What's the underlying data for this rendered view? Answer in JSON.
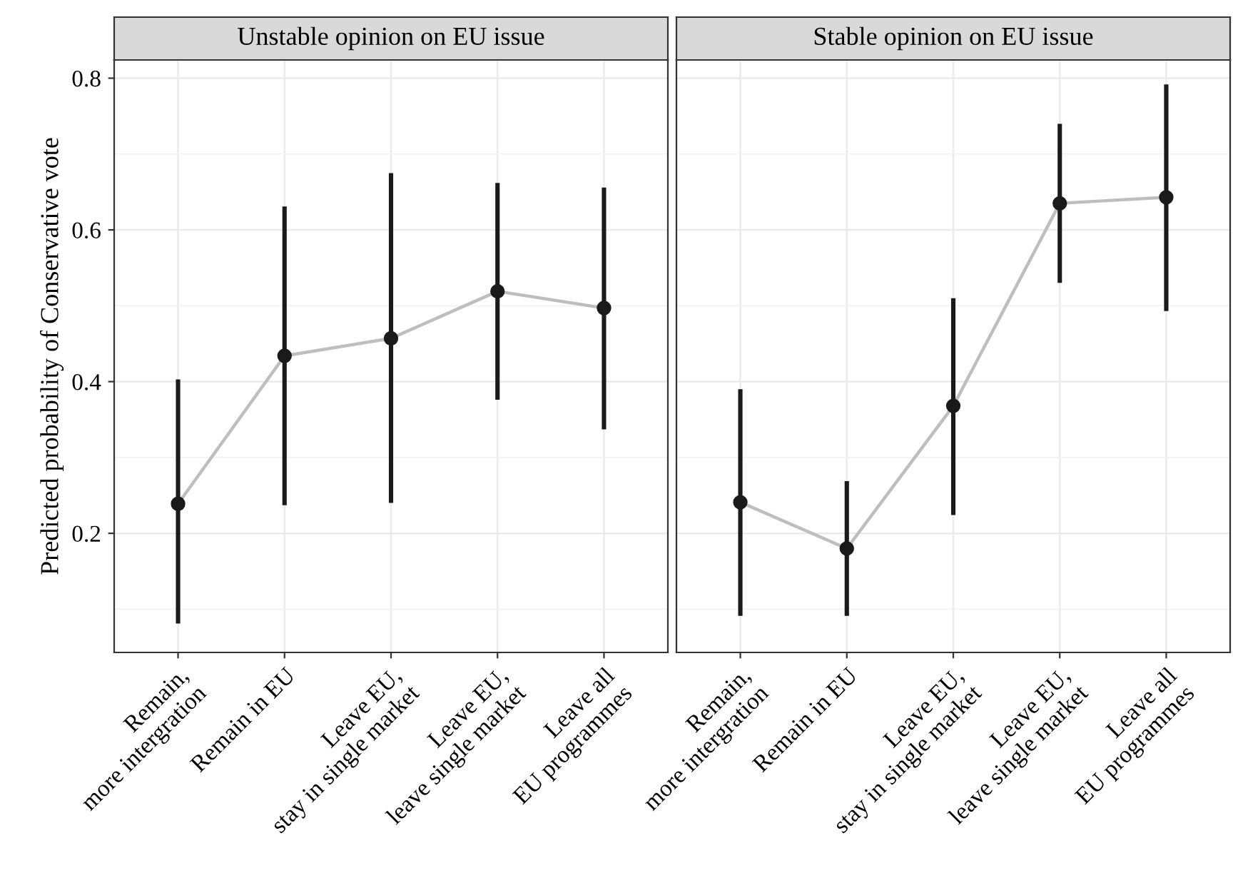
{
  "chart_data": [
    {
      "type": "line",
      "title": "Unstable opinion on EU issue",
      "ylabel": "Predicted probability of Conservative vote",
      "categories": [
        "Remain,\nmore intergration",
        "Remain in EU",
        "Leave EU,\nstay in single market",
        "Leave EU,\nleave single market",
        "Leave all\nEU programmes"
      ],
      "series": [
        {
          "color": "#bebebe",
          "values": [
            0.239,
            0.434,
            0.457,
            0.519,
            0.497
          ]
        },
        {
          "type": "scatter",
          "color": "#1a1a1a",
          "marker": "circle",
          "values": [
            0.239,
            0.434,
            0.457,
            0.519,
            0.497
          ],
          "errors": [
            [
              0.084,
              0.4
            ],
            [
              0.24,
              0.628
            ],
            [
              0.243,
              0.672
            ],
            [
              0.379,
              0.659
            ],
            [
              0.34,
              0.653
            ]
          ]
        }
      ],
      "ylim": [
        0.043,
        0.824
      ],
      "yticks": [
        0.2,
        0.4,
        0.6,
        0.8
      ],
      "grid": true
    },
    {
      "type": "line",
      "title": "Stable opinion on EU issue",
      "categories": [
        "Remain,\nmore intergration",
        "Remain in EU",
        "Leave EU,\nstay in single market",
        "Leave EU,\nleave single market",
        "Leave all\nEU programmes"
      ],
      "series": [
        {
          "color": "#bebebe",
          "values": [
            0.241,
            0.18,
            0.368,
            0.635,
            0.643
          ]
        },
        {
          "type": "scatter",
          "color": "#1a1a1a",
          "marker": "circle",
          "values": [
            0.241,
            0.18,
            0.368,
            0.635,
            0.643
          ],
          "errors": [
            [
              0.094,
              0.387
            ],
            [
              0.094,
              0.266
            ],
            [
              0.227,
              0.507
            ],
            [
              0.533,
              0.737
            ],
            [
              0.496,
              0.789
            ]
          ]
        }
      ],
      "ylim": [
        0.043,
        0.824
      ],
      "yticks": [
        0.2,
        0.4,
        0.6,
        0.8
      ],
      "grid": true,
      "tick_labels": "x"
    }
  ]
}
